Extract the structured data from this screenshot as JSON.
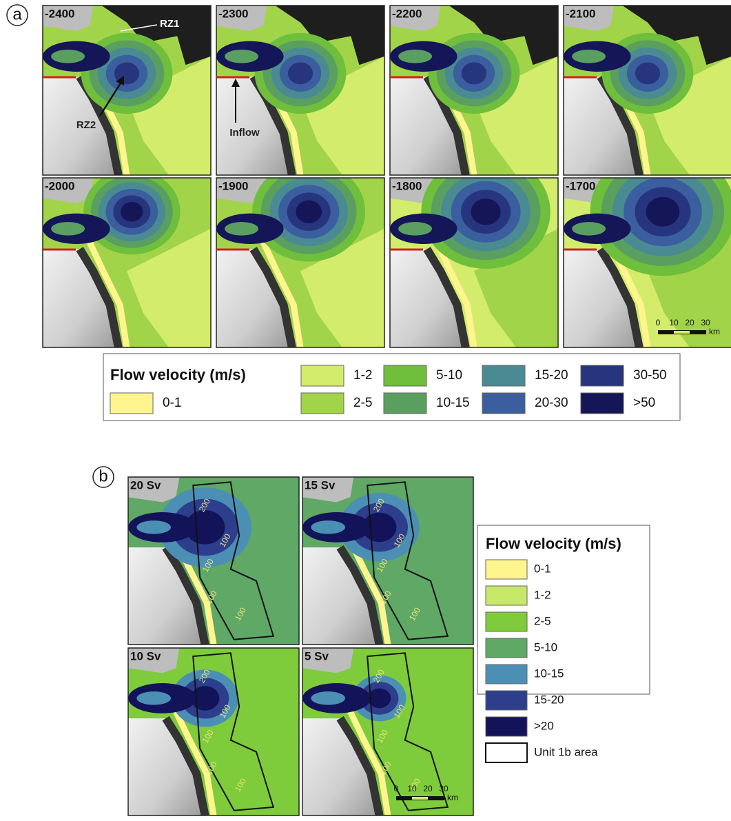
{
  "figure": {
    "panel_a": {
      "label": "a",
      "panels": [
        {
          "label": "-2400"
        },
        {
          "label": "-2300"
        },
        {
          "label": "-2200"
        },
        {
          "label": "-2100"
        },
        {
          "label": "-2000"
        },
        {
          "label": "-1900"
        },
        {
          "label": "-1800"
        },
        {
          "label": "-1700"
        }
      ],
      "annotations": {
        "rz1": "RZ1",
        "rz2": "RZ2",
        "inflow": "Inflow"
      },
      "scale_bar": {
        "ticks": [
          "0",
          "10",
          "20",
          "30"
        ],
        "unit": "km"
      },
      "legend": {
        "title": "Flow velocity (m/s)",
        "items": [
          {
            "label": "0-1",
            "color": "#fef58f"
          },
          {
            "label": "1-2",
            "color": "#d4ec6c"
          },
          {
            "label": "2-5",
            "color": "#a2d44a"
          },
          {
            "label": "5-10",
            "color": "#6fbe3c"
          },
          {
            "label": "10-15",
            "color": "#5a9f60"
          },
          {
            "label": "15-20",
            "color": "#4a8a93"
          },
          {
            "label": "20-30",
            "color": "#3a5e9e"
          },
          {
            "label": "30-50",
            "color": "#27357f"
          },
          {
            "label": ">50",
            "color": "#141657"
          }
        ]
      }
    },
    "panel_b": {
      "label": "b",
      "panels": [
        {
          "label": "20 Sv",
          "contour_labels": [
            "200",
            "100",
            "100",
            "100",
            "100"
          ]
        },
        {
          "label": "15 Sv",
          "contour_labels": [
            "200",
            "100",
            "100",
            "100",
            "100"
          ]
        },
        {
          "label": "10 Sv",
          "contour_labels": [
            "200",
            "100",
            "100",
            "100",
            "100"
          ]
        },
        {
          "label": "5 Sv",
          "contour_labels": [
            "200",
            "100",
            "100",
            "100",
            "100"
          ]
        }
      ],
      "scale_bar": {
        "ticks": [
          "0",
          "10",
          "20",
          "30"
        ],
        "unit": "km"
      },
      "legend": {
        "title": "Flow velocity (m/s)",
        "items": [
          {
            "label": "0-1",
            "color": "#fef58f"
          },
          {
            "label": "1-2",
            "color": "#c8e86a"
          },
          {
            "label": "2-5",
            "color": "#7ecb3c"
          },
          {
            "label": "5-10",
            "color": "#5fa866"
          },
          {
            "label": "10-15",
            "color": "#4b8fb4"
          },
          {
            "label": "15-20",
            "color": "#2c3e8c"
          },
          {
            "label": ">20",
            "color": "#131359"
          }
        ],
        "outline_item": "Unit 1b area"
      }
    }
  }
}
